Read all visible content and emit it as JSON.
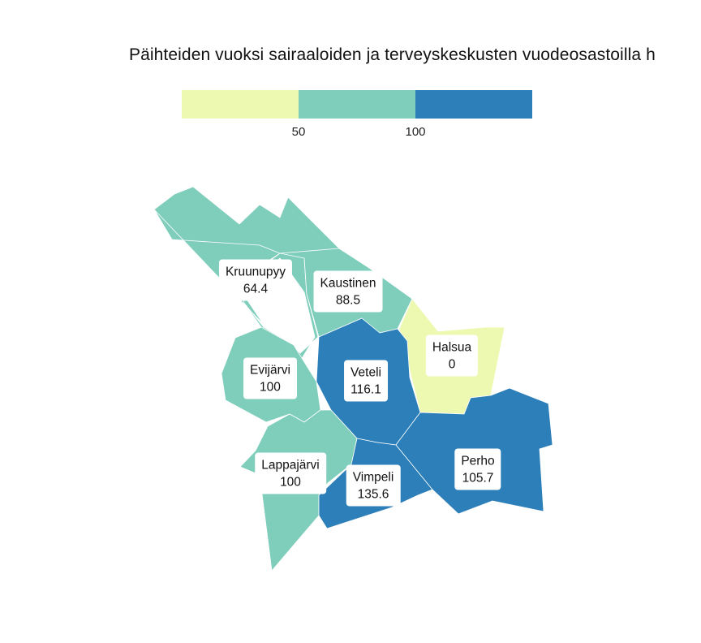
{
  "title": "Päihteiden vuoksi sairaaloiden ja terveyskeskusten vuodeosastoilla h",
  "legend": {
    "ticks": [
      "50",
      "100"
    ],
    "colors": [
      "#edf8b1",
      "#7fcdbb",
      "#2c7fb8"
    ]
  },
  "regions": [
    {
      "id": "kruunupyy",
      "name": "Kruunupyy",
      "value": "64.4",
      "color": "#7fcdbb"
    },
    {
      "id": "kaustinen",
      "name": "Kaustinen",
      "value": "88.5",
      "color": "#7fcdbb"
    },
    {
      "id": "halsua",
      "name": "Halsua",
      "value": "0",
      "color": "#edf8b1"
    },
    {
      "id": "evijarvi",
      "name": "Evijärvi",
      "value": "100",
      "color": "#7fcdbb"
    },
    {
      "id": "veteli",
      "name": "Veteli",
      "value": "116.1",
      "color": "#2c7fb8"
    },
    {
      "id": "lappajarvi",
      "name": "Lappajärvi",
      "value": "100",
      "color": "#7fcdbb"
    },
    {
      "id": "vimpeli",
      "name": "Vimpeli",
      "value": "135.6",
      "color": "#2c7fb8"
    },
    {
      "id": "perho",
      "name": "Perho",
      "value": "105.7",
      "color": "#2c7fb8"
    }
  ]
}
